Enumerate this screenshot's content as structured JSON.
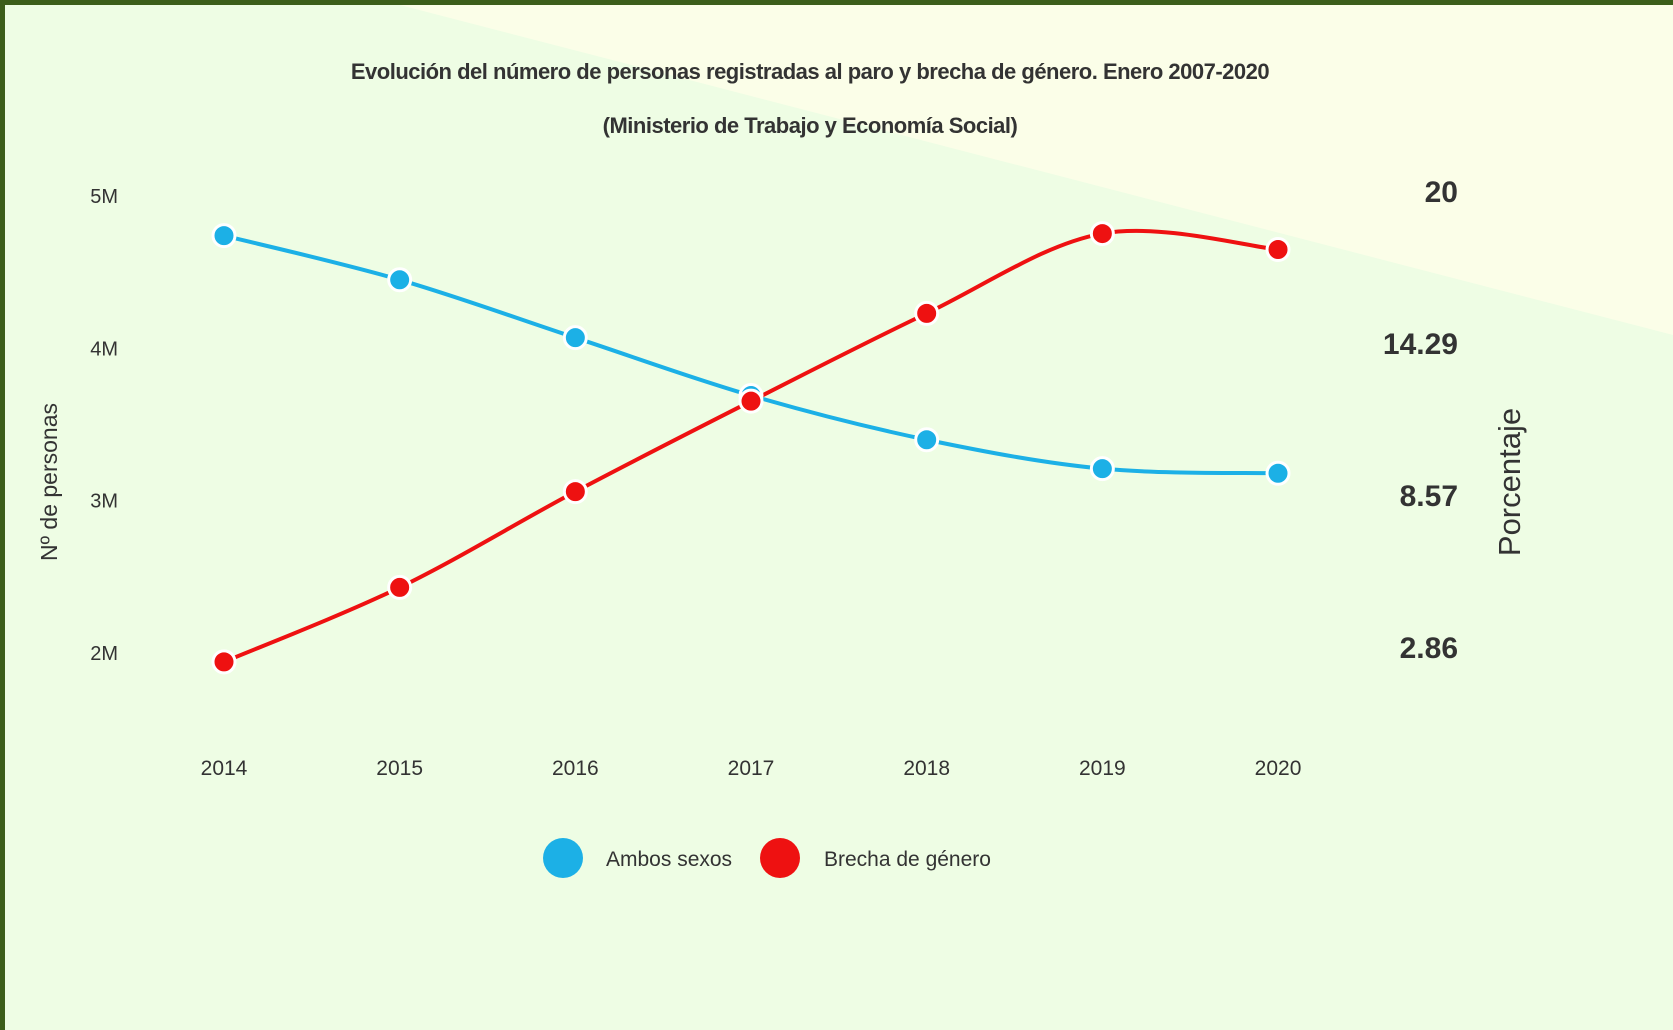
{
  "chart_data": {
    "type": "line",
    "title": "Evolución del número de personas  registradas al paro y brecha de género. Enero 2007-2020",
    "subtitle": "(Ministerio de Trabajo y Economía Social)",
    "categories": [
      "2014",
      "2015",
      "2016",
      "2017",
      "2018",
      "2019",
      "2020"
    ],
    "series": [
      {
        "name": "Ambos sexos",
        "axis": "left",
        "color": "#1cb0e6",
        "values": [
          4740000,
          4450000,
          4070000,
          3690000,
          3400000,
          3210000,
          3180000
        ]
      },
      {
        "name": "Brecha de género",
        "axis": "right",
        "color": "#ee1111",
        "values": [
          2.3,
          5.1,
          8.7,
          12.1,
          15.4,
          18.4,
          17.8
        ]
      }
    ],
    "ylabel": "Nº de personas",
    "ylim": [
      1500000,
      5000000
    ],
    "yticks": [
      2000000,
      3000000,
      4000000,
      5000000
    ],
    "ytick_labels": [
      "2M",
      "3M",
      "4M",
      "5M"
    ],
    "y2label": "Porcentaje",
    "y2lim": [
      0.86,
      20
    ],
    "y2ticks": [
      2.86,
      8.57,
      14.29,
      20
    ],
    "y2tick_labels": [
      "2.86",
      "8.57",
      "14.29",
      "20"
    ],
    "legend_position": "bottom",
    "grid": false
  },
  "colors": {
    "background": "#eefde4",
    "background_highlight": "#fbfee8",
    "frame_border": "#3c5e1a",
    "text": "#333333",
    "marker_outline": "#ffffff"
  }
}
